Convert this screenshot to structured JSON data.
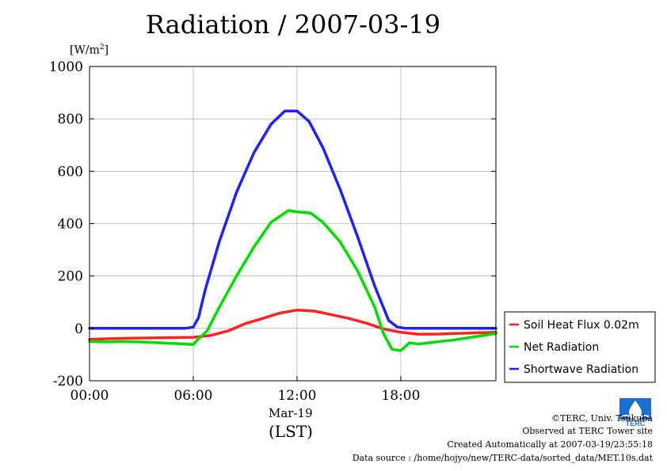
{
  "chart_data": {
    "type": "line",
    "title": "Radiation / 2007-03-19",
    "ylabel_unit": "[W/m",
    "ylabel_unit_sup": "2",
    "ylabel_unit_close": "]",
    "xlabel": "(LST)",
    "x_date_label": "Mar-19",
    "ylim": [
      -200,
      1000
    ],
    "xlim": [
      0,
      23.5
    ],
    "y_ticks": [
      -200,
      0,
      200,
      400,
      600,
      800,
      1000
    ],
    "y_tick_labels": [
      "-200",
      "0",
      "200",
      "400",
      "600",
      "800",
      "1000"
    ],
    "x_ticks": [
      0,
      6,
      12,
      18
    ],
    "x_tick_labels": [
      "00:00",
      "06:00",
      "12:00",
      "18:00"
    ],
    "grid": true,
    "legend_position": "right",
    "series": [
      {
        "name": "Soil Heat Flux 0.02m",
        "color": "#ff2020",
        "x": [
          0,
          2,
          4,
          6,
          7,
          8,
          9,
          10,
          11,
          12,
          13,
          14,
          15,
          16,
          17,
          18,
          19,
          20,
          21,
          22,
          23.5
        ],
        "y": [
          -42,
          -38,
          -36,
          -34,
          -27,
          -10,
          18,
          38,
          58,
          70,
          66,
          52,
          38,
          20,
          -2,
          -15,
          -22,
          -22,
          -20,
          -18,
          -15
        ]
      },
      {
        "name": "Net Radiation",
        "color": "#00e000",
        "x": [
          0,
          1,
          2,
          3,
          4,
          5,
          6,
          6.3,
          6.8,
          7.5,
          8.5,
          9.5,
          10.5,
          11.5,
          12,
          12.8,
          13.5,
          14.5,
          15.5,
          16.5,
          17,
          17.5,
          18,
          18.5,
          19,
          20,
          21,
          22,
          23.5
        ],
        "y": [
          -50,
          -52,
          -50,
          -52,
          -55,
          -58,
          -62,
          -40,
          -10,
          80,
          200,
          310,
          405,
          450,
          445,
          440,
          405,
          330,
          220,
          80,
          -20,
          -80,
          -85,
          -55,
          -60,
          -52,
          -45,
          -35,
          -20
        ]
      },
      {
        "name": "Shortwave Radiation",
        "color": "#2020ff",
        "x": [
          0,
          2,
          4,
          5.5,
          6,
          6.3,
          6.7,
          7.5,
          8.5,
          9.5,
          10.5,
          11.3,
          12,
          12.7,
          13.5,
          14.5,
          15.5,
          16.5,
          17.3,
          17.8,
          18.3,
          20,
          22,
          23.5
        ],
        "y": [
          0,
          0,
          0,
          0,
          5,
          40,
          150,
          330,
          520,
          670,
          780,
          830,
          830,
          790,
          690,
          530,
          350,
          160,
          30,
          5,
          0,
          0,
          0,
          0
        ]
      }
    ]
  },
  "footer": {
    "copyright": "©TERC, Univ. Tsukuba",
    "observed": "Observed at TERC Tower site",
    "created": "Created Automatically at 2007-03-19/23:55:18",
    "source": "Data source : /home/hojyo/new/TERC-data/sorted_data/MET.10s.dat"
  },
  "logo": {
    "text": "TERC",
    "color": "#1a6fd0"
  }
}
